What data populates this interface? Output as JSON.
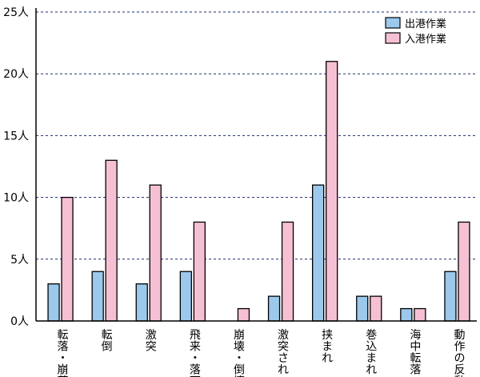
{
  "chart_data": {
    "type": "bar",
    "unit": "人",
    "ylim": [
      0,
      25
    ],
    "yticks": [
      "0人",
      "5人",
      "10人",
      "15人",
      "20人",
      "25人"
    ],
    "grid": true,
    "legend_position": "top-right",
    "categories": [
      "転落・崩落",
      "転倒",
      "激突",
      "飛来・落下",
      "崩壊・倒壊",
      "激突され",
      "挟まれ",
      "巻込まれ",
      "海中転落",
      "動作の反動"
    ],
    "series": [
      {
        "name": "出港作業",
        "color": "#9cc8ec",
        "values": [
          3,
          4,
          3,
          4,
          0,
          2,
          11,
          2,
          1,
          4
        ]
      },
      {
        "name": "入港作業",
        "color": "#f6c0d4",
        "values": [
          10,
          13,
          11,
          8,
          1,
          8,
          21,
          2,
          1,
          8
        ]
      }
    ]
  }
}
